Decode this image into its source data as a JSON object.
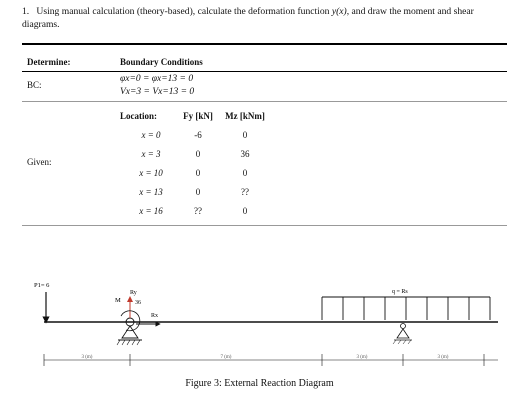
{
  "question": {
    "number": "1.",
    "text_pre": "Using manual calculation (theory-based), calculate the deformation function ",
    "func": "y(x)",
    "text_post": ", and draw the moment and shear diagrams."
  },
  "table": {
    "header_left": "Determine:",
    "header_right": "Boundary Conditions",
    "bc_label": "BC:",
    "bc_lines": [
      "φx=0 = φx=13 = 0",
      "Vx=3 = Vx=13 = 0"
    ],
    "given_label": "Given:",
    "loc_headers": [
      "Location:",
      "Fy [kN]",
      "Mz [kNm]"
    ],
    "rows": [
      {
        "x": "x = 0",
        "fy": "-6",
        "mz": "0"
      },
      {
        "x": "x = 3",
        "fy": "0",
        "mz": "36"
      },
      {
        "x": "x = 10",
        "fy": "0",
        "mz": "0"
      },
      {
        "x": "x = 13",
        "fy": "0",
        "mz": "??"
      },
      {
        "x": "x = 16",
        "fy": "??",
        "mz": "0"
      }
    ]
  },
  "figure": {
    "p1_label": "P1= 6",
    "m_label": "M",
    "m_value": "36",
    "ry_label": "Ry",
    "rx_label": "Rx",
    "q_label": "q = Rs",
    "dims": [
      "3 (m)",
      "7 (m)",
      "3 (m)",
      "3 (m)"
    ],
    "caption": "Figure 3: External Reaction Diagram"
  }
}
